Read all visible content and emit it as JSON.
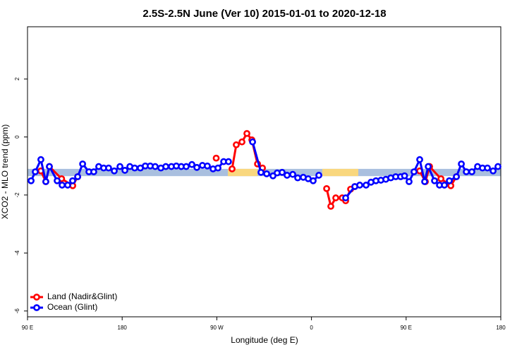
{
  "chart_data": {
    "type": "line",
    "title": "2.5S-2.5N June (Ver 10)   2015-01-01 to 2020-12-18",
    "xlabel": "Longitude (deg E)",
    "ylabel": "XCO2 - MLO trend (ppm)",
    "xlim": [
      90,
      540
    ],
    "ylim": [
      -6.2,
      3.8
    ],
    "xticks": [
      {
        "value": 90,
        "label": "90 E"
      },
      180,
      {
        "value": 270,
        "label": "90 W"
      },
      {
        "value": 360,
        "label": "0"
      },
      {
        "value": 450,
        "label": "90 E"
      },
      {
        "value": 540,
        "label": "180"
      }
    ],
    "yticks": [
      -6,
      -4,
      -2,
      0,
      2
    ],
    "legend": "bottom-left",
    "band": {
      "ylim": [
        -1.35,
        -1.1
      ],
      "color": "#a9bfdf"
    },
    "highlights": {
      "color": "#f9d77e",
      "ranges": [
        [
          280.5,
          308.6
        ],
        [
          370.3,
          404.5
        ]
      ]
    },
    "series": [
      {
        "name": "Land (Nadir&Glint)",
        "color": "#ff0000",
        "x": [
          102.7,
          107.4,
          110.8,
          122.4,
          133.0,
          137.7,
          null,
          269.4,
          null,
          284.5,
          288.5,
          293.9,
          298.6,
          303.3,
          308.7,
          313.4,
          null,
          374.4,
          378.4,
          383.1,
          389.2,
          392.5,
          397.2,
          401.2,
          null,
          462.9,
          468.3,
          472.3,
          483.1,
          492.5,
          497.8
        ],
        "values": [
          -1.17,
          -1.54,
          -1.02,
          -1.44,
          -1.68,
          -1.37,
          null,
          -0.73,
          null,
          -1.1,
          -0.27,
          -0.17,
          0.12,
          -0.1,
          -0.93,
          -1.07,
          null,
          -1.78,
          -2.39,
          -2.1,
          -2.1,
          -2.2,
          -1.8,
          -1.71,
          null,
          -1.17,
          -1.54,
          -1.02,
          -1.44,
          -1.68,
          -1.37
        ]
      },
      {
        "name": "Ocean (Glint)",
        "color": "#0000ff",
        "x": [
          93.4,
          97.4,
          102.7,
          107.4,
          110.8,
          118.2,
          122.9,
          128.2,
          132.9,
          137.7,
          142.4,
          148.4,
          153.0,
          157.7,
          162.4,
          167.1,
          172.5,
          177.9,
          182.6,
          187.3,
          191.9,
          197.3,
          202.0,
          206.7,
          211.4,
          216.8,
          221.5,
          226.8,
          231.5,
          236.2,
          240.9,
          246.3,
          251.0,
          256.3,
          261.0,
          266.4,
          271.1,
          276.5,
          281.1,
          null,
          304.0,
          312.0,
          317.4,
          323.4,
          327.4,
          332.1,
          336.8,
          342.2,
          346.9,
          352.2,
          356.9,
          361.6,
          367.0,
          null,
          392.5,
          401.2,
          405.9,
          411.9,
          416.6,
          421.3,
          426.0,
          430.7,
          435.4,
          440.1,
          444.8,
          448.5,
          452.8,
          457.5,
          462.9,
          467.6,
          471.0,
          477.0,
          481.7,
          486.4,
          491.1,
          497.8,
          502.5,
          507.2,
          512.5,
          517.9,
          522.6,
          527.3,
          532.7,
          537.3
        ],
        "values": [
          -1.51,
          -1.2,
          -0.78,
          -1.54,
          -1.02,
          -1.51,
          -1.66,
          -1.66,
          -1.51,
          -1.37,
          -0.93,
          -1.2,
          -1.2,
          -1.02,
          -1.07,
          -1.07,
          -1.17,
          -1.02,
          -1.15,
          -1.02,
          -1.07,
          -1.07,
          -1.0,
          -1.0,
          -1.02,
          -1.07,
          -1.02,
          -1.02,
          -1.0,
          -1.02,
          -1.02,
          -0.95,
          -1.05,
          -0.98,
          -1.0,
          -1.1,
          -1.07,
          -0.85,
          -0.85,
          null,
          -0.17,
          -1.22,
          -1.27,
          -1.34,
          -1.24,
          -1.22,
          -1.32,
          -1.29,
          -1.41,
          -1.39,
          -1.44,
          -1.51,
          -1.32,
          null,
          -2.1,
          -1.71,
          -1.66,
          -1.66,
          -1.56,
          -1.51,
          -1.49,
          -1.46,
          -1.41,
          -1.37,
          -1.37,
          -1.34,
          -1.54,
          -1.2,
          -0.78,
          -1.54,
          -1.02,
          -1.51,
          -1.66,
          -1.66,
          -1.51,
          -1.37,
          -0.93,
          -1.2,
          -1.2,
          -1.02,
          -1.07,
          -1.07,
          -1.17,
          -1.02
        ]
      }
    ]
  }
}
